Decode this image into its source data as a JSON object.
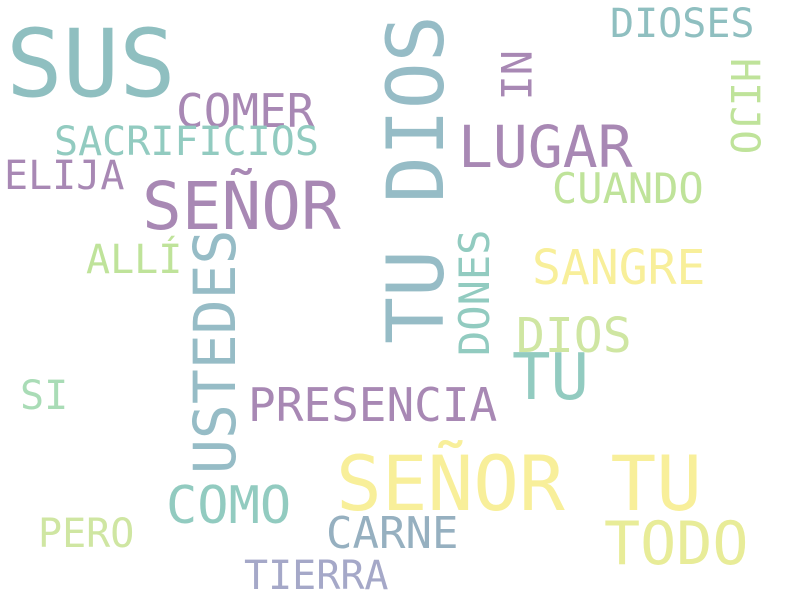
{
  "words": {
    "sus": {
      "text": "SUS",
      "color": "#8fbfc0"
    },
    "tu_dios": {
      "text": "TU DIOS",
      "color": "#96bcc6"
    },
    "dioses": {
      "text": "DIOSES",
      "color": "#8fbfc0"
    },
    "comer": {
      "text": "COMER",
      "color": "#a888b4"
    },
    "ni": {
      "text": "NI",
      "color": "#a888b4"
    },
    "lugar": {
      "text": "LUGAR",
      "color": "#a888b4"
    },
    "hijo": {
      "text": "HIJO",
      "color": "#bfe39a"
    },
    "sacrificios": {
      "text": "SACRIFICIOS",
      "color": "#92cbc0"
    },
    "elija": {
      "text": "ELIJA",
      "color": "#a888b4"
    },
    "senor": {
      "text": "SEÑOR",
      "color": "#a888b4"
    },
    "cuando": {
      "text": "CUANDO",
      "color": "#bfe39a"
    },
    "alli": {
      "text": "ALLÍ",
      "color": "#bfe39a"
    },
    "ustedes": {
      "text": "USTEDES",
      "color": "#96bcc6"
    },
    "dones": {
      "text": "DONES",
      "color": "#92cbc0"
    },
    "sangre": {
      "text": "SANGRE",
      "color": "#f8ef9a"
    },
    "dios": {
      "text": "DIOS",
      "color": "#cfe6a2"
    },
    "tu": {
      "text": "TU",
      "color": "#92cbc0"
    },
    "si": {
      "text": "SI",
      "color": "#a9dcb6"
    },
    "presencia": {
      "text": "PRESENCIA",
      "color": "#a888b4"
    },
    "senor_tu": {
      "text": "SEÑOR TU",
      "color": "#f8ef9a"
    },
    "como": {
      "text": "COMO",
      "color": "#92cbc0"
    },
    "pero": {
      "text": "PERO",
      "color": "#cfe6a2"
    },
    "carne": {
      "text": "CARNE",
      "color": "#96b0c0"
    },
    "todo": {
      "text": "TODO",
      "color": "#e8ec98"
    },
    "tierra": {
      "text": "TIERRA",
      "color": "#a5a8c8"
    }
  }
}
